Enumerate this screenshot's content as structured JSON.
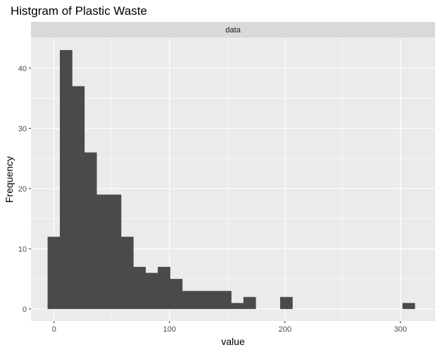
{
  "chart_data": {
    "type": "histogram",
    "title": "Histgram of Plastic Waste",
    "facet_label": "data",
    "xlabel": "value",
    "ylabel": "Frequency",
    "xlim": [
      -20,
      330
    ],
    "ylim": [
      -2,
      45
    ],
    "x_ticks": [
      0,
      100,
      200,
      300
    ],
    "y_ticks": [
      0,
      10,
      20,
      30,
      40
    ],
    "bin_width": 10.6,
    "bins": [
      {
        "x0": -5.6,
        "x1": 5.0,
        "count": 12
      },
      {
        "x0": 5.0,
        "x1": 15.6,
        "count": 43
      },
      {
        "x0": 15.6,
        "x1": 26.2,
        "count": 37
      },
      {
        "x0": 26.2,
        "x1": 36.8,
        "count": 26
      },
      {
        "x0": 36.8,
        "x1": 47.4,
        "count": 19
      },
      {
        "x0": 47.4,
        "x1": 58.0,
        "count": 19
      },
      {
        "x0": 58.0,
        "x1": 68.6,
        "count": 12
      },
      {
        "x0": 68.6,
        "x1": 79.2,
        "count": 7
      },
      {
        "x0": 79.2,
        "x1": 89.8,
        "count": 6
      },
      {
        "x0": 89.8,
        "x1": 100.4,
        "count": 7
      },
      {
        "x0": 100.4,
        "x1": 111.0,
        "count": 5
      },
      {
        "x0": 111.0,
        "x1": 121.6,
        "count": 3
      },
      {
        "x0": 121.6,
        "x1": 132.2,
        "count": 3
      },
      {
        "x0": 132.2,
        "x1": 142.8,
        "count": 3
      },
      {
        "x0": 142.8,
        "x1": 153.4,
        "count": 3
      },
      {
        "x0": 153.4,
        "x1": 164.0,
        "count": 1
      },
      {
        "x0": 164.0,
        "x1": 174.6,
        "count": 2
      },
      {
        "x0": 195.8,
        "x1": 206.4,
        "count": 2
      },
      {
        "x0": 301.8,
        "x1": 312.4,
        "count": 1
      }
    ],
    "grid": true,
    "colors": {
      "panel_background": "#ebebeb",
      "grid_line": "#ffffff",
      "bar_fill": "#4a4a4a",
      "strip_background": "#d9d9d9"
    }
  }
}
